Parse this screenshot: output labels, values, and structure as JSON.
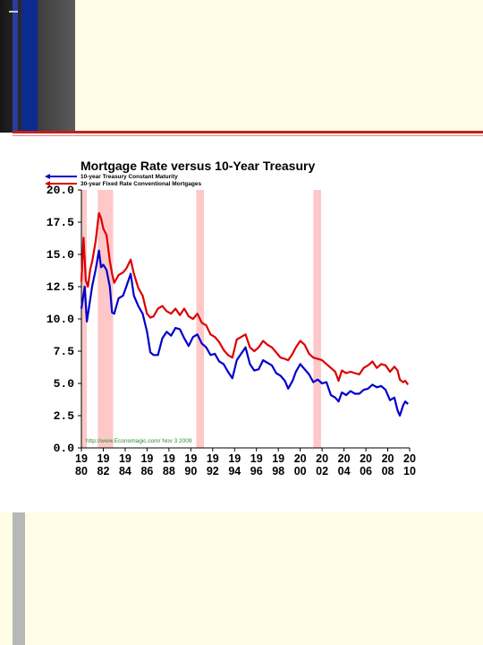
{
  "chart_data": {
    "type": "line",
    "title": "Mortgage Rate versus 10-Year Treasury",
    "series": [
      {
        "name": "10-year Treasury Constant Maturity",
        "color": "#0000cc",
        "x": [
          1980.0,
          1980.3,
          1980.5,
          1980.8,
          1981.0,
          1981.3,
          1981.6,
          1981.8,
          1982.0,
          1982.3,
          1982.6,
          1982.8,
          1983.0,
          1983.4,
          1983.8,
          1984.1,
          1984.5,
          1984.8,
          1985.2,
          1985.6,
          1986.0,
          1986.3,
          1986.6,
          1987.0,
          1987.4,
          1987.8,
          1988.2,
          1988.6,
          1989.0,
          1989.4,
          1989.8,
          1990.2,
          1990.6,
          1991.0,
          1991.4,
          1991.8,
          1992.2,
          1992.6,
          1993.0,
          1993.4,
          1993.8,
          1994.2,
          1994.6,
          1995.0,
          1995.4,
          1995.8,
          1996.2,
          1996.6,
          1997.0,
          1997.4,
          1997.8,
          1998.2,
          1998.6,
          1998.9,
          1999.3,
          1999.6,
          2000.0,
          2000.4,
          2000.8,
          2001.2,
          2001.6,
          2002.0,
          2002.4,
          2002.8,
          2003.2,
          2003.5,
          2003.8,
          2004.2,
          2004.6,
          2005.0,
          2005.4,
          2005.8,
          2006.2,
          2006.6,
          2007.0,
          2007.4,
          2007.8,
          2008.2,
          2008.6,
          2008.9,
          2009.1,
          2009.4,
          2009.6,
          2009.85
        ],
        "y": [
          10.8,
          12.5,
          9.8,
          11.5,
          12.6,
          13.8,
          15.3,
          14.0,
          14.2,
          13.8,
          12.5,
          10.5,
          10.4,
          11.6,
          11.8,
          12.5,
          13.5,
          11.8,
          11.0,
          10.4,
          9.0,
          7.4,
          7.2,
          7.2,
          8.5,
          9.0,
          8.7,
          9.3,
          9.2,
          8.5,
          7.9,
          8.6,
          8.8,
          8.1,
          7.8,
          7.2,
          7.3,
          6.7,
          6.5,
          5.9,
          5.4,
          6.8,
          7.3,
          7.8,
          6.5,
          6.0,
          6.1,
          6.8,
          6.6,
          6.4,
          5.8,
          5.6,
          5.2,
          4.6,
          5.2,
          5.9,
          6.5,
          6.1,
          5.7,
          5.1,
          5.3,
          5.0,
          5.1,
          4.1,
          3.9,
          3.6,
          4.3,
          4.1,
          4.4,
          4.2,
          4.2,
          4.5,
          4.6,
          4.9,
          4.7,
          4.8,
          4.5,
          3.7,
          3.9,
          2.9,
          2.5,
          3.3,
          3.6,
          3.4
        ]
      },
      {
        "name": "30-year Fixed Rate Conventional Mortgages",
        "color": "#dd0000",
        "x": [
          1980.0,
          1980.2,
          1980.4,
          1980.6,
          1980.8,
          1981.0,
          1981.3,
          1981.6,
          1981.8,
          1982.0,
          1982.3,
          1982.6,
          1982.8,
          1983.0,
          1983.4,
          1983.8,
          1984.1,
          1984.5,
          1984.8,
          1985.2,
          1985.6,
          1986.0,
          1986.3,
          1986.6,
          1987.0,
          1987.4,
          1987.8,
          1988.2,
          1988.6,
          1989.0,
          1989.4,
          1989.8,
          1990.2,
          1990.6,
          1991.0,
          1991.4,
          1991.8,
          1992.2,
          1992.6,
          1993.0,
          1993.4,
          1993.8,
          1994.2,
          1994.6,
          1995.0,
          1995.4,
          1995.8,
          1996.2,
          1996.6,
          1997.0,
          1997.4,
          1997.8,
          1998.2,
          1998.6,
          1998.9,
          1999.3,
          1999.6,
          2000.0,
          2000.4,
          2000.8,
          2001.2,
          2001.6,
          2002.0,
          2002.4,
          2002.8,
          2003.2,
          2003.5,
          2003.8,
          2004.2,
          2004.6,
          2005.0,
          2005.4,
          2005.8,
          2006.2,
          2006.6,
          2007.0,
          2007.4,
          2007.8,
          2008.2,
          2008.6,
          2008.9,
          2009.1,
          2009.4,
          2009.6,
          2009.85
        ],
        "y": [
          12.9,
          16.3,
          13.0,
          12.5,
          13.8,
          14.5,
          16.0,
          18.2,
          17.8,
          17.0,
          16.5,
          14.5,
          13.5,
          12.8,
          13.4,
          13.6,
          13.9,
          14.6,
          13.5,
          12.4,
          11.8,
          10.4,
          10.1,
          10.2,
          10.8,
          11.0,
          10.6,
          10.4,
          10.8,
          10.3,
          10.8,
          10.2,
          10.0,
          10.4,
          9.7,
          9.5,
          8.8,
          8.6,
          8.2,
          7.6,
          7.2,
          7.0,
          8.4,
          8.6,
          8.8,
          7.8,
          7.5,
          7.8,
          8.3,
          8.0,
          7.8,
          7.4,
          7.0,
          6.9,
          6.8,
          7.3,
          7.8,
          8.3,
          8.0,
          7.3,
          7.0,
          6.9,
          6.8,
          6.5,
          6.2,
          5.9,
          5.2,
          6.0,
          5.8,
          5.9,
          5.8,
          5.7,
          6.2,
          6.4,
          6.7,
          6.2,
          6.5,
          6.4,
          5.9,
          6.3,
          6.0,
          5.3,
          5.1,
          5.2,
          4.9
        ]
      }
    ],
    "recessions": [
      [
        1980.0,
        1980.5
      ],
      [
        1981.5,
        1982.9
      ],
      [
        1990.5,
        1991.2
      ],
      [
        2001.2,
        2001.9
      ]
    ],
    "xlim": [
      1980,
      2010
    ],
    "ylim": [
      0,
      20
    ],
    "yticks": [
      "0.0",
      "2.5",
      "5.0",
      "7.5",
      "10.0",
      "12.5",
      "15.0",
      "17.5",
      "20.0"
    ],
    "xticks_top": [
      "19",
      "19",
      "19",
      "19",
      "19",
      "19",
      "19",
      "19",
      "19",
      "19",
      "20",
      "20",
      "20",
      "20",
      "20",
      "20"
    ],
    "xticks_bottom": [
      "80",
      "82",
      "84",
      "86",
      "88",
      "90",
      "92",
      "94",
      "96",
      "98",
      "00",
      "02",
      "04",
      "06",
      "08",
      "10"
    ],
    "source_note": "http://www.Economagic.com/   Nov 3 2009",
    "legend_placement": "top-left",
    "grid": false,
    "recession_color": "#ffc8c8"
  }
}
